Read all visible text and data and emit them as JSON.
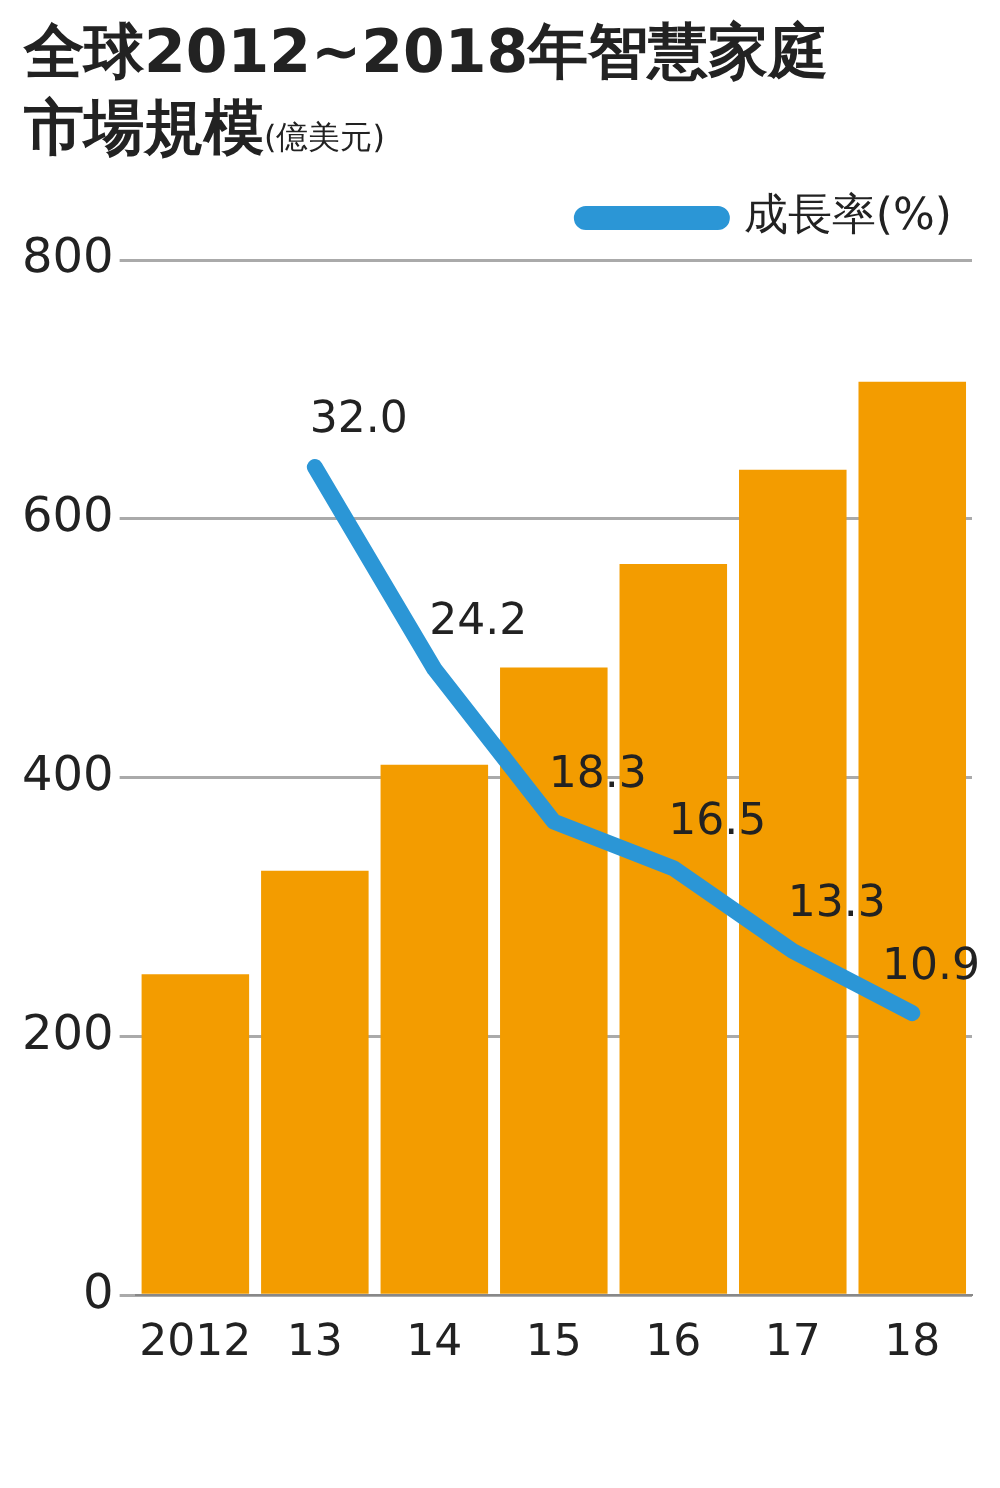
{
  "chart_data": {
    "type": "bar",
    "title": "全球2012~2018年智慧家庭市場規模",
    "subtitle": "(億美元)",
    "categories": [
      "2012",
      "13",
      "14",
      "15",
      "16",
      "17",
      "18"
    ],
    "series": [
      {
        "type": "bar",
        "color": "#f39c00",
        "values": [
          248,
          328,
          410,
          485,
          565,
          638,
          706
        ]
      },
      {
        "type": "line",
        "name": "成長率(%)",
        "color": "#2b96d6",
        "axis": "y2",
        "values": [
          null,
          32.0,
          24.2,
          18.3,
          16.5,
          13.3,
          10.9
        ],
        "value_labels": [
          null,
          "32.0",
          "24.2",
          "18.3",
          "16.5",
          "13.3",
          "10.9"
        ]
      }
    ],
    "ylim": [
      0,
      800
    ],
    "yticks": [
      0,
      200,
      400,
      600,
      800
    ],
    "grid": "y",
    "legend": "top right",
    "marker": "none",
    "line_style": "solid"
  }
}
